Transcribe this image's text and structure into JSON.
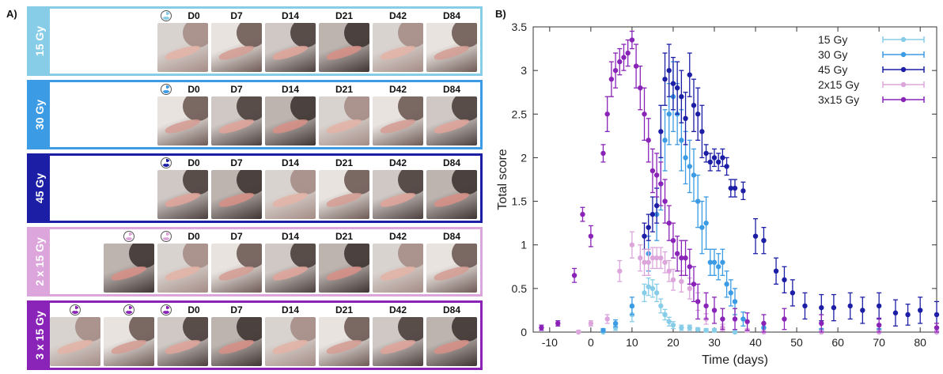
{
  "panel_a": {
    "label": "A)",
    "groups": [
      {
        "name": "15 Gy",
        "color": "#87cde8",
        "icon_color": "#87cde8",
        "icons": [
          "radiation-icon"
        ],
        "days": [
          {
            "label": "D0"
          },
          {
            "label": "D7"
          },
          {
            "label": "D14"
          },
          {
            "label": "D21"
          },
          {
            "label": "D42"
          },
          {
            "label": "D84"
          }
        ]
      },
      {
        "name": "30 Gy",
        "color": "#3b9be4",
        "icon_color": "#3b9be4",
        "icons": [
          "radiation-icon"
        ],
        "days": [
          {
            "label": "D0"
          },
          {
            "label": "D7"
          },
          {
            "label": "D14"
          },
          {
            "label": "D21"
          },
          {
            "label": "D42"
          },
          {
            "label": "D84"
          }
        ]
      },
      {
        "name": "45 Gy",
        "color": "#1c1fa6",
        "icon_color": "#1c1fa6",
        "icons": [
          "radiation-icon"
        ],
        "days": [
          {
            "label": "D0"
          },
          {
            "label": "D7"
          },
          {
            "label": "D14"
          },
          {
            "label": "D21"
          },
          {
            "label": "D42"
          },
          {
            "label": "D84"
          }
        ]
      },
      {
        "name": "2 x 15 Gy",
        "color": "#dca6dc",
        "icon_color": "#dca6dc",
        "icons": [
          "radiation-icon",
          "radiation-icon"
        ],
        "days": [
          {
            "label": ""
          },
          {
            "label": "D0"
          },
          {
            "label": "D7"
          },
          {
            "label": "D14"
          },
          {
            "label": "D21"
          },
          {
            "label": "D42"
          },
          {
            "label": "D84"
          }
        ]
      },
      {
        "name": "3 x 15 Gy",
        "color": "#8a24b8",
        "icon_color": "#8a24b8",
        "icons": [
          "radiation-icon",
          "radiation-icon",
          "radiation-icon"
        ],
        "days": [
          {
            "label": ""
          },
          {
            "label": ""
          },
          {
            "label": "D0"
          },
          {
            "label": "D7"
          },
          {
            "label": "D14"
          },
          {
            "label": "D21"
          },
          {
            "label": "D42"
          },
          {
            "label": "D84"
          }
        ]
      }
    ]
  },
  "panel_b": {
    "label": "B)"
  },
  "chart_data": {
    "type": "scatter",
    "title": "",
    "xlabel": "Time (days)",
    "ylabel": "Total score",
    "xlim": [
      -14,
      84
    ],
    "ylim": [
      0,
      3.5
    ],
    "xticks": [
      -10,
      0,
      10,
      20,
      30,
      40,
      50,
      60,
      70,
      80
    ],
    "yticks": [
      0,
      0.5,
      1,
      1.5,
      2,
      2.5,
      3,
      3.5
    ],
    "error_bars": true,
    "legend": "top-right",
    "series": [
      {
        "name": "15 Gy",
        "color": "#87cde8",
        "points": [
          [
            3,
            0.0,
            0.02
          ],
          [
            6,
            0.05,
            0.03
          ],
          [
            10,
            0.2,
            0.08
          ],
          [
            13,
            0.45,
            0.1
          ],
          [
            14,
            0.52,
            0.1
          ],
          [
            15,
            0.5,
            0.1
          ],
          [
            16,
            0.45,
            0.1
          ],
          [
            17,
            0.3,
            0.08
          ],
          [
            18,
            0.2,
            0.06
          ],
          [
            19,
            0.12,
            0.05
          ],
          [
            20,
            0.08,
            0.04
          ],
          [
            22,
            0.05,
            0.03
          ],
          [
            24,
            0.05,
            0.03
          ],
          [
            26,
            0.03,
            0.02
          ],
          [
            28,
            0.02,
            0.02
          ],
          [
            30,
            0.02,
            0.02
          ],
          [
            35,
            0.0,
            0.01
          ],
          [
            42,
            0.0,
            0.01
          ],
          [
            56,
            0.0,
            0.01
          ],
          [
            70,
            0.0,
            0.01
          ],
          [
            84,
            0.0,
            0.01
          ]
        ]
      },
      {
        "name": "30 Gy",
        "color": "#3b9be4",
        "points": [
          [
            3,
            0.02,
            0.02
          ],
          [
            6,
            0.1,
            0.04
          ],
          [
            10,
            0.3,
            0.1
          ],
          [
            14,
            0.9,
            0.2
          ],
          [
            16,
            1.35,
            0.3
          ],
          [
            17,
            1.7,
            0.3
          ],
          [
            18,
            2.2,
            0.35
          ],
          [
            19,
            2.5,
            0.35
          ],
          [
            20,
            2.7,
            0.4
          ],
          [
            21,
            2.5,
            0.35
          ],
          [
            22,
            2.2,
            0.35
          ],
          [
            23,
            2.0,
            0.3
          ],
          [
            24,
            1.9,
            0.3
          ],
          [
            25,
            1.8,
            0.3
          ],
          [
            26,
            1.5,
            0.3
          ],
          [
            27,
            1.2,
            0.3
          ],
          [
            28,
            1.25,
            0.3
          ],
          [
            29,
            0.8,
            0.15
          ],
          [
            30,
            0.8,
            0.15
          ],
          [
            31,
            0.75,
            0.15
          ],
          [
            32,
            0.8,
            0.15
          ],
          [
            33,
            0.55,
            0.15
          ],
          [
            34,
            0.45,
            0.15
          ],
          [
            35,
            0.35,
            0.15
          ],
          [
            37,
            0.15,
            0.08
          ],
          [
            42,
            0.05,
            0.05
          ],
          [
            56,
            0.02,
            0.02
          ],
          [
            70,
            0.02,
            0.02
          ],
          [
            84,
            0.0,
            0.02
          ]
        ]
      },
      {
        "name": "45 Gy",
        "color": "#1c1fa6",
        "points": [
          [
            13,
            1.1,
            0.15
          ],
          [
            14,
            1.2,
            0.15
          ],
          [
            15,
            1.35,
            0.2
          ],
          [
            16,
            1.45,
            0.2
          ],
          [
            17,
            2.3,
            0.3
          ],
          [
            18,
            2.9,
            0.3
          ],
          [
            19,
            3.0,
            0.3
          ],
          [
            20,
            2.85,
            0.3
          ],
          [
            21,
            2.8,
            0.3
          ],
          [
            22,
            2.7,
            0.3
          ],
          [
            23,
            2.45,
            0.3
          ],
          [
            24,
            2.95,
            0.25
          ],
          [
            25,
            2.6,
            0.3
          ],
          [
            26,
            2.5,
            0.3
          ],
          [
            27,
            2.3,
            0.3
          ],
          [
            28,
            2.05,
            0.1
          ],
          [
            29,
            1.95,
            0.1
          ],
          [
            30,
            2.0,
            0.1
          ],
          [
            31,
            1.95,
            0.1
          ],
          [
            32,
            2.0,
            0.1
          ],
          [
            33,
            1.9,
            0.1
          ],
          [
            34,
            1.65,
            0.1
          ],
          [
            35,
            1.65,
            0.1
          ],
          [
            37,
            1.62,
            0.1
          ],
          [
            40,
            1.1,
            0.2
          ],
          [
            42,
            1.05,
            0.15
          ],
          [
            45,
            0.7,
            0.15
          ],
          [
            47,
            0.6,
            0.15
          ],
          [
            49,
            0.45,
            0.15
          ],
          [
            52,
            0.3,
            0.15
          ],
          [
            56,
            0.28,
            0.15
          ],
          [
            59,
            0.28,
            0.15
          ],
          [
            63,
            0.3,
            0.15
          ],
          [
            66,
            0.25,
            0.15
          ],
          [
            70,
            0.3,
            0.15
          ],
          [
            74,
            0.22,
            0.15
          ],
          [
            77,
            0.2,
            0.12
          ],
          [
            80,
            0.25,
            0.15
          ],
          [
            84,
            0.2,
            0.15
          ]
        ]
      },
      {
        "name": "2x15 Gy",
        "color": "#dca6dc",
        "points": [
          [
            -3,
            0.0,
            0.02
          ],
          [
            0,
            0.1,
            0.03
          ],
          [
            4,
            0.15,
            0.05
          ],
          [
            7,
            0.7,
            0.12
          ],
          [
            10,
            1.0,
            0.15
          ],
          [
            12,
            0.85,
            0.15
          ],
          [
            13,
            0.8,
            0.15
          ],
          [
            14,
            0.8,
            0.15
          ],
          [
            15,
            0.85,
            0.12
          ],
          [
            16,
            0.85,
            0.12
          ],
          [
            17,
            0.85,
            0.12
          ],
          [
            18,
            0.8,
            0.12
          ],
          [
            19,
            0.7,
            0.12
          ],
          [
            20,
            0.6,
            0.12
          ],
          [
            22,
            0.58,
            0.12
          ],
          [
            24,
            0.5,
            0.12
          ],
          [
            26,
            0.35,
            0.1
          ],
          [
            28,
            0.15,
            0.06
          ],
          [
            32,
            0.05,
            0.04
          ],
          [
            38,
            0.02,
            0.02
          ],
          [
            42,
            0.0,
            0.02
          ],
          [
            56,
            0.0,
            0.02
          ],
          [
            70,
            0.0,
            0.02
          ],
          [
            84,
            0.0,
            0.02
          ]
        ]
      },
      {
        "name": "3x15 Gy",
        "color": "#8a24b8",
        "points": [
          [
            -12,
            0.05,
            0.03
          ],
          [
            -8,
            0.1,
            0.03
          ],
          [
            -4,
            0.65,
            0.08
          ],
          [
            -2,
            1.35,
            0.08
          ],
          [
            0,
            1.1,
            0.12
          ],
          [
            3,
            2.05,
            0.1
          ],
          [
            4,
            2.5,
            0.2
          ],
          [
            5,
            2.9,
            0.2
          ],
          [
            6,
            3.0,
            0.2
          ],
          [
            7,
            3.1,
            0.15
          ],
          [
            8,
            3.15,
            0.15
          ],
          [
            9,
            3.2,
            0.15
          ],
          [
            10,
            3.35,
            0.1
          ],
          [
            11,
            3.05,
            0.25
          ],
          [
            12,
            2.8,
            0.25
          ],
          [
            13,
            2.5,
            0.3
          ],
          [
            14,
            2.2,
            0.25
          ],
          [
            15,
            1.85,
            0.25
          ],
          [
            16,
            1.8,
            0.25
          ],
          [
            17,
            1.7,
            0.25
          ],
          [
            18,
            1.5,
            0.25
          ],
          [
            19,
            1.25,
            0.2
          ],
          [
            20,
            1.05,
            0.2
          ],
          [
            21,
            0.9,
            0.2
          ],
          [
            22,
            0.85,
            0.2
          ],
          [
            23,
            0.85,
            0.2
          ],
          [
            24,
            0.75,
            0.2
          ],
          [
            25,
            0.55,
            0.2
          ],
          [
            26,
            0.35,
            0.2
          ],
          [
            28,
            0.3,
            0.15
          ],
          [
            30,
            0.25,
            0.15
          ],
          [
            32,
            0.15,
            0.12
          ],
          [
            35,
            0.15,
            0.12
          ],
          [
            38,
            0.12,
            0.1
          ],
          [
            42,
            0.1,
            0.1
          ],
          [
            47,
            0.15,
            0.12
          ],
          [
            56,
            0.1,
            0.1
          ],
          [
            70,
            0.08,
            0.08
          ],
          [
            84,
            0.05,
            0.05
          ]
        ]
      }
    ]
  }
}
